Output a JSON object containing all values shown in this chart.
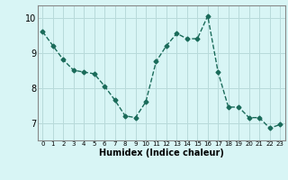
{
  "x": [
    0,
    1,
    2,
    3,
    4,
    5,
    6,
    7,
    8,
    9,
    10,
    11,
    12,
    13,
    14,
    15,
    16,
    17,
    18,
    19,
    20,
    21,
    22,
    23
  ],
  "y": [
    9.6,
    9.2,
    8.8,
    8.5,
    8.45,
    8.4,
    8.05,
    7.65,
    7.2,
    7.15,
    7.6,
    8.75,
    9.2,
    9.55,
    9.4,
    9.4,
    10.05,
    8.45,
    7.45,
    7.45,
    7.15,
    7.15,
    6.85,
    6.95
  ],
  "title": "",
  "xlabel": "Humidex (Indice chaleur)",
  "ylabel": "",
  "ylim": [
    6.5,
    10.35
  ],
  "xlim": [
    -0.5,
    23.5
  ],
  "yticks": [
    7,
    8,
    9,
    10
  ],
  "xticks": [
    0,
    1,
    2,
    3,
    4,
    5,
    6,
    7,
    8,
    9,
    10,
    11,
    12,
    13,
    14,
    15,
    16,
    17,
    18,
    19,
    20,
    21,
    22,
    23
  ],
  "bg_color": "#d8f5f5",
  "grid_color": "#b8dada",
  "line_color": "#1a6b5a",
  "marker": "D",
  "marker_size": 2.5,
  "line_width": 1.0,
  "xlabel_fontsize": 7,
  "xtick_fontsize": 5,
  "ytick_fontsize": 7
}
